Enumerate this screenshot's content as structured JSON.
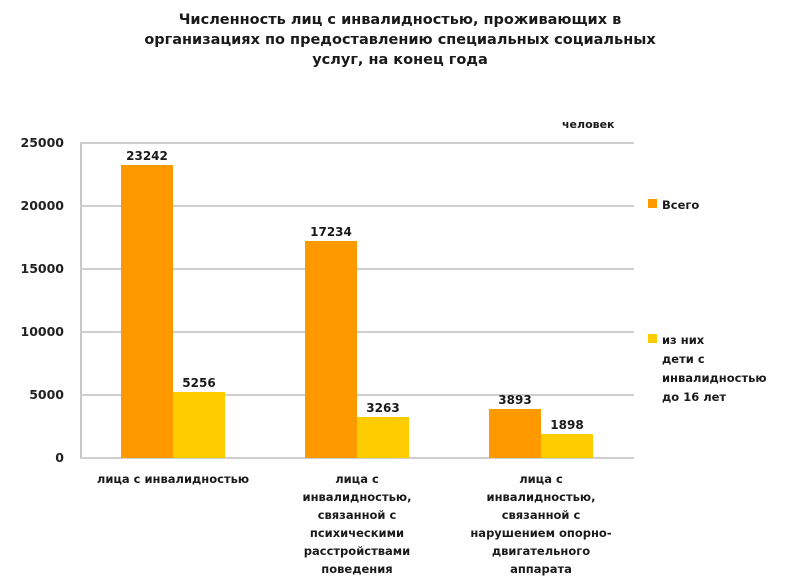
{
  "chart_data": {
    "type": "bar",
    "title": "Численность лиц с инвалидностью, проживающих в организациях по предоставлению специальных социальных услуг,  на конец года",
    "title_lines": [
      "Численность лиц с инвалидностью, проживающих в",
      "организациях по предоставлению специальных социальных",
      "услуг,  на конец года"
    ],
    "unit_label": "человек",
    "xlabel": "",
    "ylabel": "",
    "ylim": [
      0,
      25000
    ],
    "yticks": [
      "0",
      "5000",
      "10000",
      "15000",
      "20000",
      "25000"
    ],
    "grid": true,
    "legend_position": "right",
    "categories": [
      "лица с инвалидностью",
      "лица с инвалидностью, связанной с психическими расстройствами поведения",
      "лица с инвалидностью, связанной с нарушением опорно-двигательного аппарата"
    ],
    "category_labels_wrapped": [
      "лица с инвалидностью",
      "лица с\nинвалидностью,\nсвязанной с\nпсихическими\nрасстройствами\nповедения",
      "лица с\nинвалидностью,\nсвязанной с\nнарушением опорно-\nдвигательного\nаппарата"
    ],
    "series": [
      {
        "name": "Всего",
        "legend_label": "Всего",
        "color": "#FF9900",
        "values": [
          23242,
          17234,
          3893
        ]
      },
      {
        "name": "из них дети с инвалидностью до 16 лет",
        "legend_label": "из них\nдети с\nинвалидностью\nдо 16 лет",
        "color": "#FFCC00",
        "values": [
          5256,
          3263,
          1898
        ]
      }
    ],
    "data_labels": {
      "series0": [
        "23242",
        "17234",
        "3893"
      ],
      "series1": [
        "5256",
        "3263",
        "1898"
      ]
    }
  }
}
